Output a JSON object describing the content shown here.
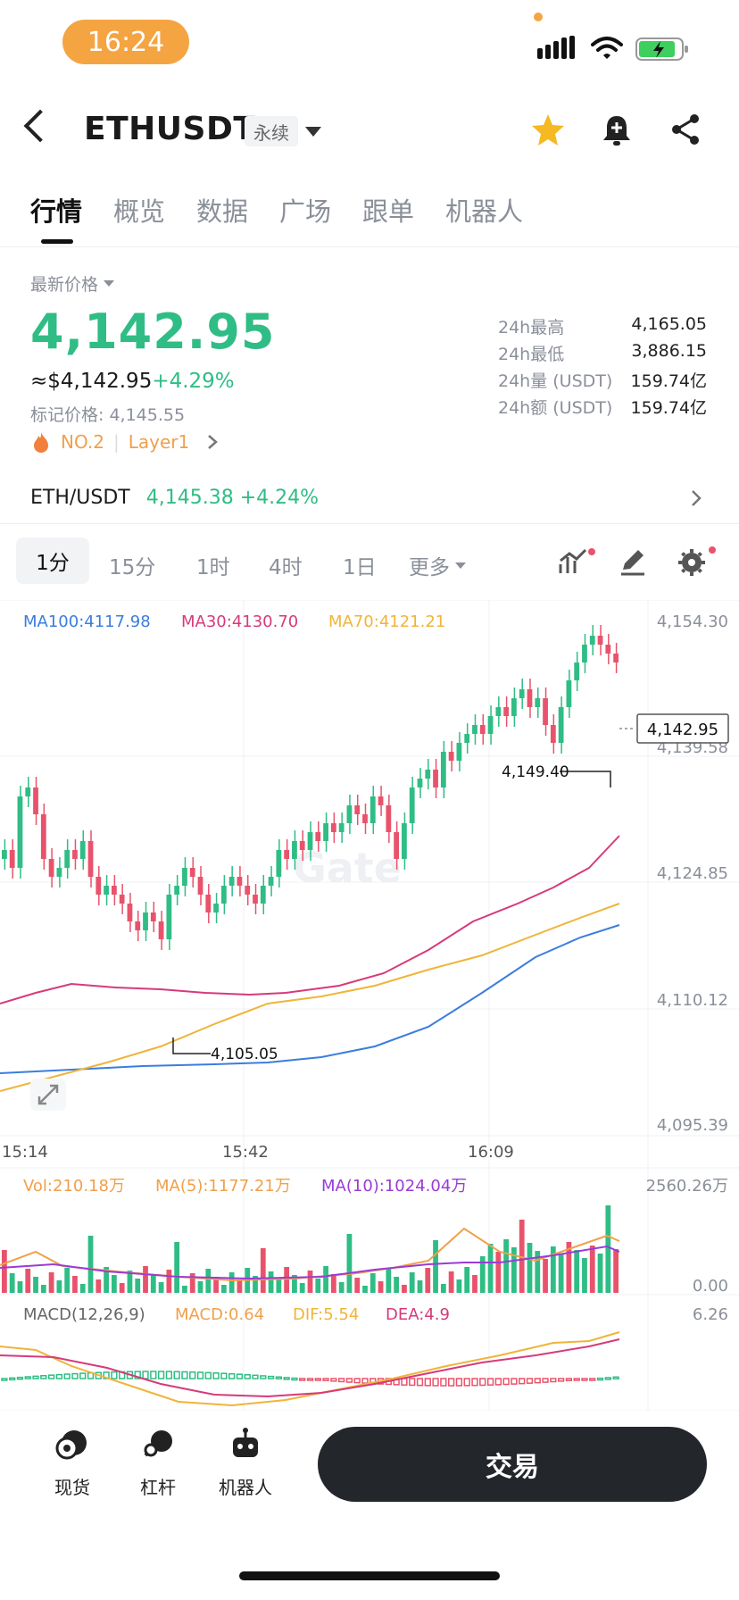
{
  "status_bar": {
    "time": "16:24"
  },
  "header": {
    "symbol": "ETHUSDT",
    "contract_type": "永续"
  },
  "tabs": [
    {
      "label": "行情",
      "active": true
    },
    {
      "label": "概览"
    },
    {
      "label": "数据"
    },
    {
      "label": "广场"
    },
    {
      "label": "跟单"
    },
    {
      "label": "机器人"
    }
  ],
  "price": {
    "label": "最新价格",
    "last": "4,142.95",
    "usd_equiv": "≈$4,142.95",
    "change_pct": "+4.29%",
    "mark_price": "标记价格: 4,145.55",
    "rank": "NO.2",
    "tag": "Layer1"
  },
  "stats": [
    {
      "label": "24h最高",
      "value": "4,165.05"
    },
    {
      "label": "24h最低",
      "value": "3,886.15"
    },
    {
      "label": "24h量 (USDT)",
      "value": "159.74亿"
    },
    {
      "label": "24h额 (USDT)",
      "value": "159.74亿"
    }
  ],
  "spot": {
    "pair": "ETH/USDT",
    "price": "4,145.38",
    "change": "+4.24%"
  },
  "timeframes": {
    "items": [
      "1分",
      "15分",
      "1时",
      "4时",
      "1日"
    ],
    "more": "更多"
  },
  "ma_legend": {
    "ma100": "MA100:4117.98",
    "ma30": "MA30:4130.70",
    "ma70": "MA70:4121.21"
  },
  "colors": {
    "up": "#2fbd85",
    "down": "#e8536b",
    "ma100": "#3b7ddd",
    "ma30": "#d63a7a",
    "ma70": "#f0b43a",
    "accent": "#f5a442"
  },
  "chart_data": {
    "type": "candlestick",
    "y_ticks": [
      "4,154.30",
      "4,139.58",
      "4,124.85",
      "4,110.12",
      "4,095.39"
    ],
    "x_ticks": [
      "15:14",
      "15:42",
      "16:09"
    ],
    "current_price_label": "4,142.95",
    "high_marker": "4,149.40",
    "low_marker": "4,105.05",
    "watermark": "Gate"
  },
  "volume": {
    "vol": "Vol:210.18万",
    "ma5": "MA(5):1177.21万",
    "ma10": "MA(10):1024.04万",
    "max": "2560.26万",
    "min": "0.00"
  },
  "macd": {
    "title": "MACD(12,26,9)",
    "macd": "MACD:0.64",
    "dif": "DIF:5.54",
    "dea": "DEA:4.9",
    "max": "6.26"
  },
  "bottom_nav": [
    {
      "label": "现货",
      "icon": "spot-coins-icon"
    },
    {
      "label": "杠杆",
      "icon": "leverage-icon"
    },
    {
      "label": "机器人",
      "icon": "robot-icon"
    }
  ],
  "trade_button": "交易"
}
